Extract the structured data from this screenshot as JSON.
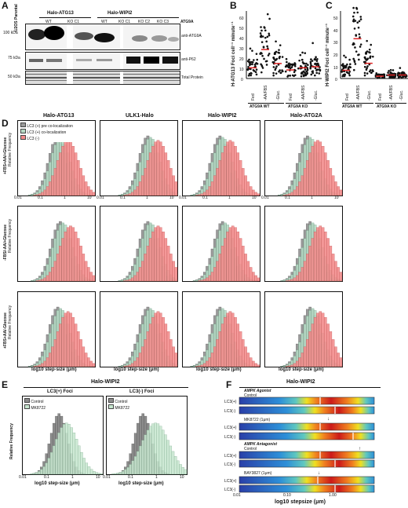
{
  "panels": {
    "A": "A",
    "B": "B",
    "C": "C",
    "D": "D",
    "E": "E",
    "F": "F"
  },
  "panelA": {
    "lanes": {
      "parental": "U2OS Parental",
      "group1": "Halo-ATG13",
      "group2": "Halo-WIPI2",
      "wt1": "WT",
      "koc1": "KO C1",
      "wt2": "WT",
      "koc1b": "KO C1",
      "koc2": "KO C2",
      "koc3": "KO C3",
      "atg9a": "ATG9A"
    },
    "mw": {
      "m100": "100 kDa",
      "m75": "75 kDa",
      "m50": "50 kDa"
    },
    "rows": {
      "r1": "anti-ATG9A",
      "r2": "anti-P62",
      "r3": "Total Protein"
    }
  },
  "panelB": {
    "ylabel": "H-ATG13 Foci cell⁻¹ minute⁻¹",
    "yticks": [
      "0",
      "10",
      "20",
      "30",
      "40",
      "50",
      "60"
    ],
    "cats": [
      "Fed",
      "-AA/FBS",
      "-Gluc.",
      "Fed",
      "-AA/FBS",
      "-Gluc."
    ],
    "groups": [
      "ATG9A WT",
      "ATG9A KO"
    ]
  },
  "panelC": {
    "ylabel": "H-WIPI2 Foci cell⁻¹ minute⁻¹",
    "yticks": [
      "0",
      "10",
      "20",
      "30",
      "40",
      "50"
    ],
    "cats": [
      "Fed",
      "-AA/FBS",
      "-Gluc.",
      "Fed",
      "-AA/FBS",
      "-Gluc."
    ],
    "groups": [
      "ATG9A WT",
      "ATG9A KO"
    ]
  },
  "panelD": {
    "cols": [
      "Halo-ATG13",
      "ULK1-Halo",
      "Halo-WIPI2",
      "Halo-ATG2A"
    ],
    "rows": [
      "+FBS+AA/+Glucose",
      "-FBS/-AA/+Glucose",
      "+FBS+AA/-Glucose"
    ],
    "ylabel": "Relative Frequency",
    "legend": [
      "LC3 (+) pre co-localization",
      "LC3 (+) co-localization",
      "LC3 (-)"
    ],
    "xticks": [
      "0.01",
      "0.1",
      "1",
      "10"
    ],
    "xlabel": "log10 step-size (μm)"
  },
  "panelE": {
    "title": "Halo-WIPI2",
    "sub": [
      "LC3(+) Foci",
      "LC3(-) Foci"
    ],
    "legend": [
      "Control",
      "MK8722"
    ],
    "ylabel": "Relative Frequency",
    "xticks": [
      "0.01",
      "0.1",
      "1",
      "10"
    ],
    "xlabel": "log10 step-size (μm)"
  },
  "panelF": {
    "title": "Halo-WIPI2",
    "sec1": "AMPK Agonist",
    "sec2": "AMPK Antagonist",
    "ctrl": "Control",
    "ctrl2": "Control",
    "mk": "MK8722 (1μm)",
    "bay": "BAY3827 (1μm)",
    "lc3p": "LC3(+)",
    "lc3m": "LC3(-)",
    "xticks": [
      "0.01",
      "0.10",
      "1.00"
    ],
    "xlabel": "log10 stepsize (μm)"
  },
  "chart_data": [
    {
      "type": "scatter",
      "panel": "B",
      "ylabel": "H-ATG13 Foci cell⁻¹ minute⁻¹",
      "ylim": [
        0,
        60
      ],
      "categories": [
        "Fed",
        "-AA/FBS",
        "-Gluc.",
        "Fed",
        "-AA/FBS",
        "-Gluc."
      ],
      "medians": [
        10,
        27,
        14,
        8,
        10,
        11
      ]
    },
    {
      "type": "scatter",
      "panel": "C",
      "ylabel": "H-WIPI2 Foci cell⁻¹ minute⁻¹",
      "ylim": [
        0,
        55
      ],
      "categories": [
        "Fed",
        "-AA/FBS",
        "-Gluc.",
        "Fed",
        "-AA/FBS",
        "-Gluc."
      ],
      "medians": [
        7,
        34,
        13,
        2,
        3,
        3
      ]
    }
  ],
  "colors": {
    "lc3neg": "#f28a8a",
    "lc3pos": "#b5d9c4",
    "pre": "#9a9a9a",
    "ctrl": "#8c8c8c",
    "mk": "#c7e6cf",
    "red": "#d22"
  }
}
